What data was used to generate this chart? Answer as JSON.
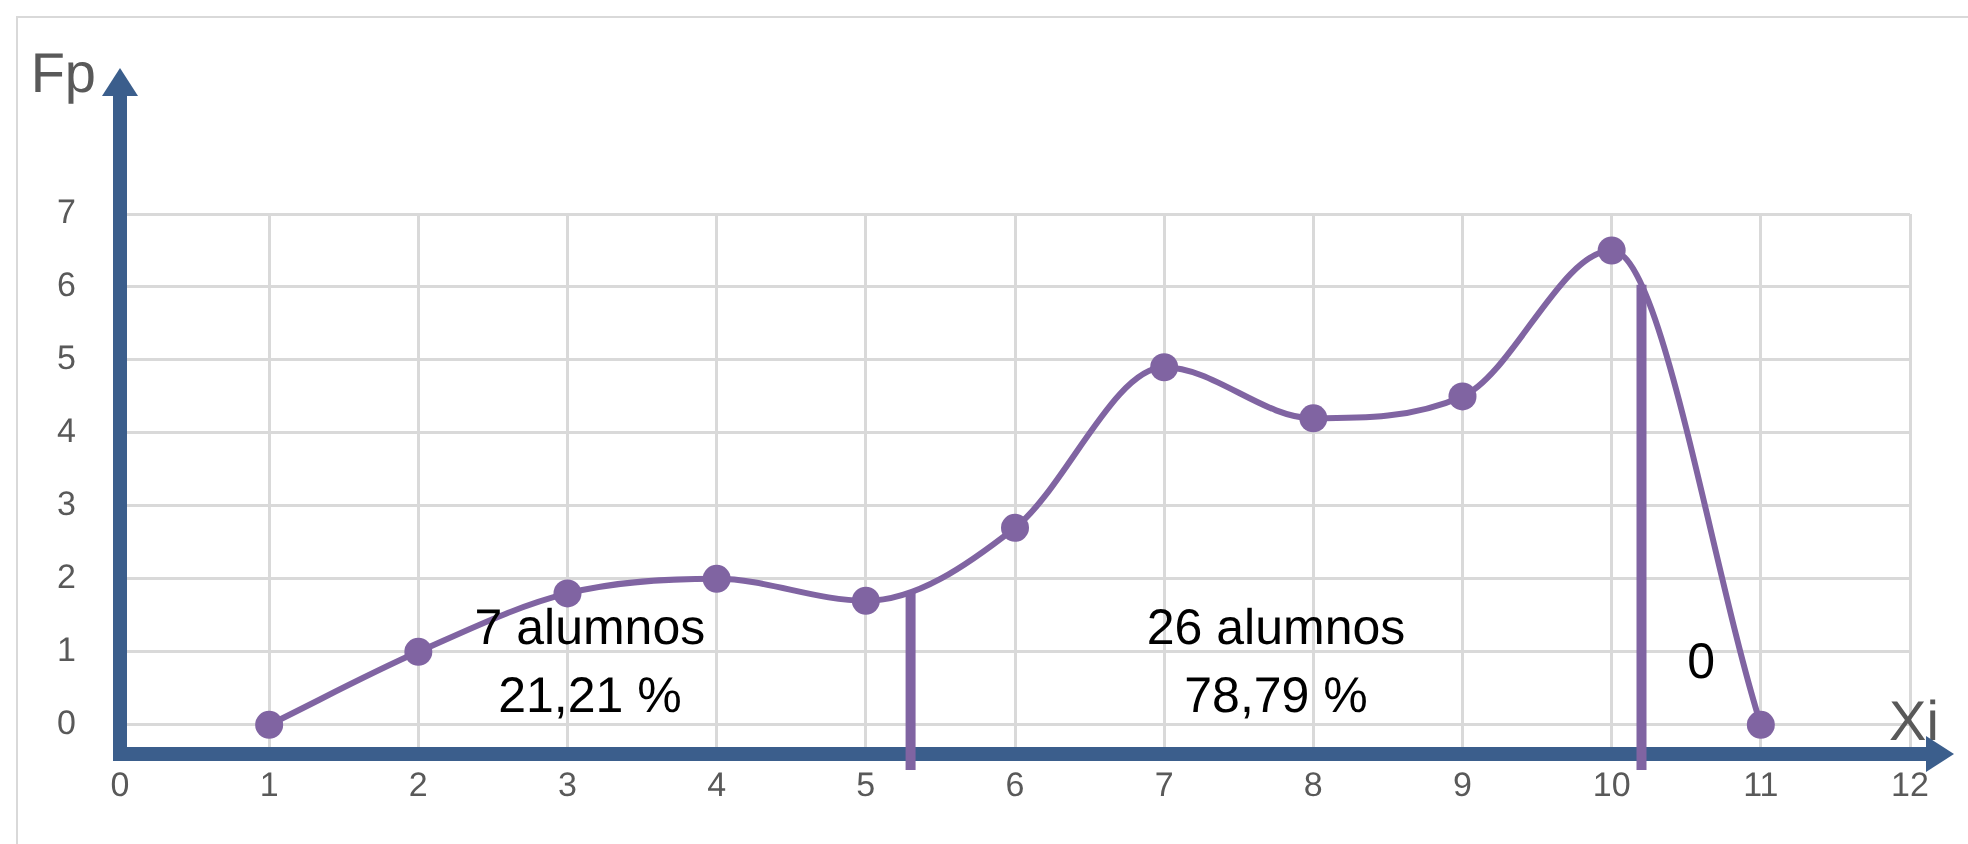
{
  "chart_data": {
    "type": "line",
    "xlabel": "Xi",
    "ylabel": "Fp",
    "x": [
      1,
      2,
      3,
      4,
      5,
      6,
      7,
      8,
      9,
      10,
      11
    ],
    "series": [
      {
        "color": "#8064a2",
        "values": [
          0,
          1,
          1.8,
          2,
          1.7,
          2.7,
          4.9,
          4.2,
          4.5,
          6.5,
          0
        ]
      }
    ],
    "xlim": [
      0,
      12
    ],
    "xticks": [
      0,
      1,
      2,
      3,
      4,
      5,
      6,
      7,
      8,
      9,
      10,
      11,
      12
    ],
    "ylim": [
      -0.4,
      7
    ],
    "yticks": [
      0,
      1,
      2,
      3,
      4,
      5,
      6,
      7
    ],
    "grid": true,
    "legend": false,
    "marker": "circle",
    "line_style": "solid",
    "ref_lines": [
      {
        "axis": "x",
        "value": 5.3,
        "color": "#8064a2"
      },
      {
        "axis": "x",
        "value": 10.2,
        "color": "#8064a2"
      }
    ],
    "annotations": [
      "7 alumnos\n21,21 %",
      "26 alumnos\n78,79 %",
      "0"
    ]
  }
}
